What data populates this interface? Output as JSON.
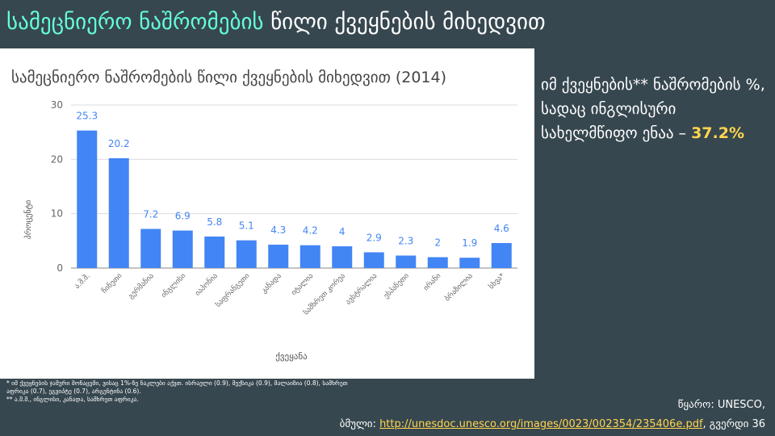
{
  "slide": {
    "title_highlight": "სამეცნიერო ნაშრომების",
    "title_rest": " წილი ქვეყნების მიხედვით"
  },
  "side": {
    "text": "იმ ქვეყნების** ნაშრომების %, სადაც ინგლისური სახელმწიფო ენაა – ",
    "value": "37.2%"
  },
  "footnotes": {
    "note1": "* იმ ქვეყნების ჯამური მონაცემი, ვისაც 1%-ზე ნაკლები აქვთ. ისრაელი (0.9), მექსიკა (0.9), მალაიზია (0.8), სამხრეთ აფრიკა (0.7), ეგვიპტე (0.7), არგენტინა (0.6).",
    "note2": "** ა.შ.შ., ინგლისი, კანადა, სამხრეთ აფრიკა."
  },
  "source": {
    "label": "წყარო: UNESCO,",
    "link_prefix": "ბმული: ",
    "url": "http://unesdoc.unesco.org/images/0023/002354/235406e.pdf",
    "page": ", გვერდი 36"
  },
  "colors": {
    "background": "#37474f",
    "title_accent": "#64ffda",
    "bar": "#4285f4",
    "highlight": "#ffd54f"
  },
  "chart_data": {
    "type": "bar",
    "title": "სამეცნიერო ნაშრომების წილი ქვეყნების მიხედვით (2014)",
    "xlabel": "ქვეყანა",
    "ylabel": "პროცენტი",
    "ylim": [
      0,
      30
    ],
    "yticks": [
      0,
      10,
      20,
      30
    ],
    "grid": true,
    "legend": "none",
    "categories": [
      "ა.შ.შ.",
      "ჩინეთი",
      "გერმანია",
      "ინგლისი",
      "იაპონია",
      "საფრანგეთი",
      "კანადა",
      "იტალია",
      "სამხრეთ კორეა",
      "ავსტრალია",
      "ესპანეთი",
      "ირანი",
      "ბრაზილია",
      "სხვა*"
    ],
    "values": [
      25.3,
      20.2,
      7.2,
      6.9,
      5.8,
      5.1,
      4.3,
      4.2,
      4,
      2.9,
      2.3,
      2,
      1.9,
      4.6
    ]
  }
}
